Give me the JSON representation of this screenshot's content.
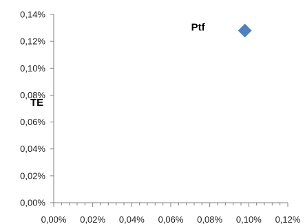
{
  "chart_data": {
    "type": "scatter",
    "xlabel": "",
    "ylabel": "TE",
    "xlim": [
      0,
      0.0012
    ],
    "ylim": [
      0,
      0.0014
    ],
    "x_ticks": [
      "0,00%",
      "0,02%",
      "0,04%",
      "0,06%",
      "0,08%",
      "0,10%",
      "0,12%"
    ],
    "y_ticks": [
      "0,00%",
      "0,02%",
      "0,04%",
      "0,06%",
      "0,08%",
      "0,10%",
      "0,12%",
      "0,14%"
    ],
    "grid": false,
    "legend": "none",
    "points": [
      {
        "label": "Ptf",
        "x": 0.00098,
        "y": 0.00128
      }
    ],
    "colors": {
      "marker": "#4f81bd",
      "axis": "#7f7f7f"
    }
  }
}
